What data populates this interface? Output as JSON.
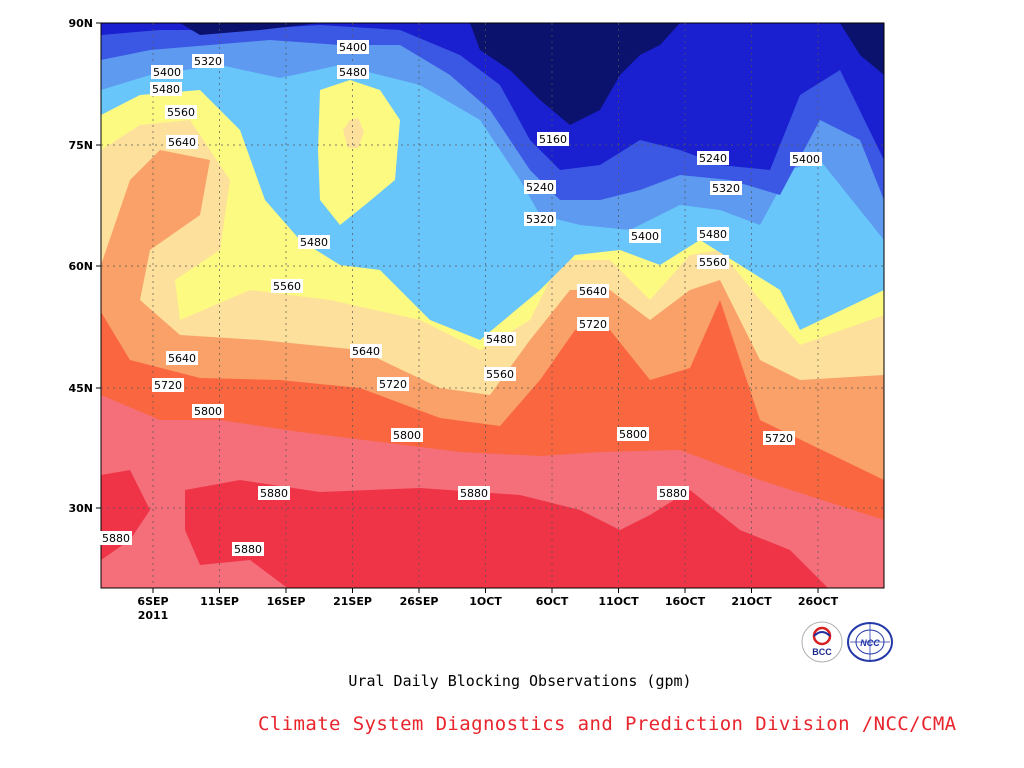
{
  "chart_data": {
    "type": "heatmap",
    "subtype": "filled-contour",
    "x_ticks": [
      "6SEP",
      "11SEP",
      "16SEP",
      "21SEP",
      "26SEP",
      "1OCT",
      "6OCT",
      "11OCT",
      "16OCT",
      "21OCT",
      "26OCT"
    ],
    "x_tick_note": "2011",
    "y_ticks": [
      "90N",
      "75N",
      "60N",
      "45N",
      "30N"
    ],
    "xlim": [
      "4SEP2011",
      "31OCT2011"
    ],
    "ylim": [
      20,
      90
    ],
    "grid": true,
    "contour_levels": [
      5160,
      5240,
      5320,
      5400,
      5480,
      5560,
      5640,
      5720,
      5800,
      5880
    ],
    "contour_labels": [
      {
        "value": "5320"
      },
      {
        "value": "5400"
      },
      {
        "value": "5400"
      },
      {
        "value": "5480"
      },
      {
        "value": "5480"
      },
      {
        "value": "5560"
      },
      {
        "value": "5640"
      },
      {
        "value": "5480"
      },
      {
        "value": "5560"
      },
      {
        "value": "5640"
      },
      {
        "value": "5720"
      },
      {
        "value": "5800"
      },
      {
        "value": "5640"
      },
      {
        "value": "5720"
      },
      {
        "value": "5800"
      },
      {
        "value": "5880"
      },
      {
        "value": "5880"
      },
      {
        "value": "5880"
      },
      {
        "value": "5480"
      },
      {
        "value": "5560"
      },
      {
        "value": "5880"
      },
      {
        "value": "5160"
      },
      {
        "value": "5240"
      },
      {
        "value": "5320"
      },
      {
        "value": "5400"
      },
      {
        "value": "5240"
      },
      {
        "value": "5320"
      },
      {
        "value": "5480"
      },
      {
        "value": "5560"
      },
      {
        "value": "5400"
      },
      {
        "value": "5640"
      },
      {
        "value": "5720"
      },
      {
        "value": "5800"
      },
      {
        "value": "5720"
      },
      {
        "value": "5880"
      },
      {
        "value": "5880"
      }
    ]
  },
  "subtitle": "Ural Daily Blocking Observations (gpm)",
  "credit": "Climate System Diagnostics and Prediction Division /NCC/CMA",
  "logos": {
    "left": "BCC",
    "right": "NCC"
  }
}
